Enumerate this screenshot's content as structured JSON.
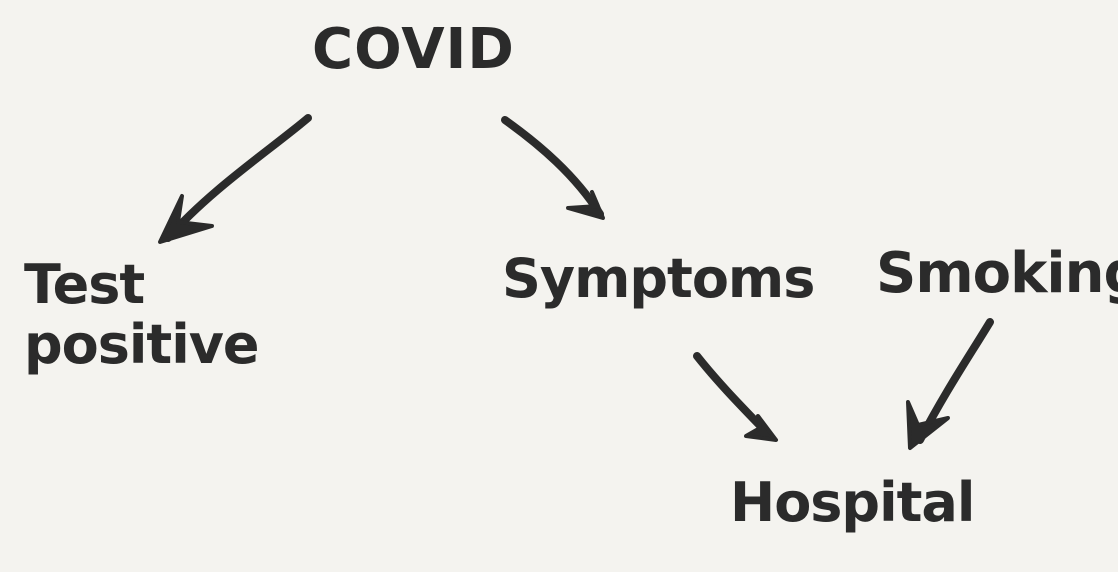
{
  "nodes": {
    "covid": "COVID",
    "test_positive": "Test\npositive",
    "symptoms": "Symptoms",
    "smoking": "Smoking",
    "hospital": "Hospital"
  },
  "edges": [
    {
      "from": "COVID",
      "to": "Test positive"
    },
    {
      "from": "COVID",
      "to": "Symptoms"
    },
    {
      "from": "Symptoms",
      "to": "Hospital"
    },
    {
      "from": "Smoking",
      "to": "Hospital"
    }
  ],
  "colors": {
    "background": "#f4f3ef",
    "ink": "#2b2b2b"
  }
}
